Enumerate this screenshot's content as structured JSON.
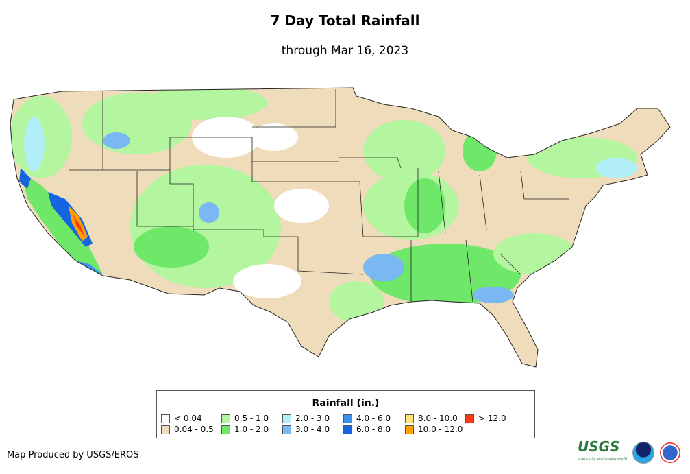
{
  "title": "7 Day Total Rainfall",
  "subtitle": "through Mar 16, 2023",
  "legend": {
    "title": "Rainfall (in.)",
    "items": [
      {
        "label": "< 0.04",
        "color": "#ffffff"
      },
      {
        "label": "0.04 - 0.5",
        "color": "#efdcbb"
      },
      {
        "label": "0.5 - 1.0",
        "color": "#b4f5a0"
      },
      {
        "label": "1.0 - 2.0",
        "color": "#6fe86a"
      },
      {
        "label": "2.0 - 3.0",
        "color": "#b2eef5"
      },
      {
        "label": "3.0 - 4.0",
        "color": "#79b8f2"
      },
      {
        "label": "4.0 - 6.0",
        "color": "#3c91ec"
      },
      {
        "label": "6.0 - 8.0",
        "color": "#1565e0"
      },
      {
        "label": "8.0 - 10.0",
        "color": "#ffe57a"
      },
      {
        "label": "10.0 - 12.0",
        "color": "#ff9f00"
      },
      {
        "label": "> 12.0",
        "color": "#ff3a10"
      }
    ]
  },
  "credit": "Map Produced by USGS/EROS",
  "logos": {
    "usgs": "USGS",
    "usgs_tagline": "science for a changing world",
    "noaa": "noaa"
  }
}
